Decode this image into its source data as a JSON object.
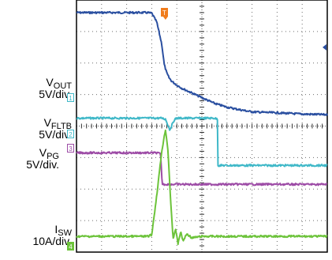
{
  "chart_data": {
    "type": "line",
    "title": "",
    "xlabel": "",
    "ylabel": "",
    "grid": true,
    "divisions": {
      "x": 10,
      "y": 8
    },
    "x_range": [
      0,
      10
    ],
    "y_range": [
      -4,
      4
    ],
    "trigger_marker": {
      "label": "T",
      "x": 3.55,
      "color": "#f07c1c"
    },
    "trigger_level_marker": {
      "y": 2.5,
      "color": "#2a4fa0"
    },
    "series": [
      {
        "key": "vout",
        "label_main": "V",
        "label_sub": "OUT",
        "label_scale": "5V/div.",
        "channel": "1",
        "color": "#2a4fa0",
        "marker_color": "#3fb8c8",
        "ground_div": 0.15,
        "x": [
          0,
          1,
          2,
          2.8,
          3.0,
          3.2,
          3.4,
          3.5,
          3.6,
          3.7,
          3.8,
          4.0,
          4.2,
          4.6,
          5.0,
          5.5,
          6.0,
          6.5,
          7.0,
          8.0,
          9.0,
          10.0
        ],
        "y": [
          3.6,
          3.6,
          3.6,
          3.6,
          3.58,
          3.3,
          2.6,
          1.95,
          1.68,
          1.52,
          1.42,
          1.3,
          1.2,
          1.05,
          0.9,
          0.72,
          0.6,
          0.52,
          0.45,
          0.42,
          0.38,
          0.36
        ]
      },
      {
        "key": "vfltb",
        "label_main": "V",
        "label_sub": "FLTB",
        "label_scale": "5V/div.",
        "channel": "2",
        "color": "#3fb8c8",
        "marker_color": "#3fb8c8",
        "ground_div": -1.25,
        "x": [
          0,
          1,
          2,
          3.4,
          3.55,
          3.65,
          3.72,
          3.8,
          3.9,
          4.0,
          4.5,
          5.0,
          5.5,
          5.62,
          5.64,
          5.7,
          6,
          7,
          8,
          9,
          10
        ],
        "y": [
          0.25,
          0.25,
          0.25,
          0.25,
          0.22,
          0.02,
          -0.12,
          0.02,
          0.2,
          0.25,
          0.25,
          0.25,
          0.25,
          0.22,
          -1.25,
          -1.25,
          -1.25,
          -1.25,
          -1.25,
          -1.25,
          -1.25
        ]
      },
      {
        "key": "vpg",
        "label_main": "V",
        "label_sub": "PG",
        "label_scale": "5V/div.",
        "channel": "3",
        "color": "#9d4ca6",
        "marker_color": "#9d4ca6",
        "ground_div": -1.85,
        "x": [
          0,
          1,
          2,
          3.2,
          3.35,
          3.42,
          3.5,
          4,
          5,
          6,
          7,
          8,
          9,
          10
        ],
        "y": [
          -0.85,
          -0.85,
          -0.85,
          -0.85,
          -0.88,
          -1.85,
          -1.85,
          -1.85,
          -1.85,
          -1.85,
          -1.85,
          -1.85,
          -1.85,
          -1.85
        ]
      },
      {
        "key": "isw",
        "label_main": "I",
        "label_sub": "SW",
        "label_scale": "10A/div.",
        "channel": "4",
        "color": "#6cc33a",
        "marker_color": "#6cc33a",
        "ground_div": -3.5,
        "x": [
          0,
          1,
          2,
          2.85,
          3.0,
          3.2,
          3.4,
          3.55,
          3.65,
          3.75,
          3.85,
          3.95,
          4.05,
          4.15,
          4.25,
          4.4,
          4.6,
          5,
          6,
          7,
          8,
          9,
          10
        ],
        "y": [
          -3.5,
          -3.5,
          -3.5,
          -3.5,
          -3.45,
          -2.2,
          -0.8,
          -0.1,
          -0.8,
          -2.3,
          -3.6,
          -3.25,
          -3.75,
          -3.35,
          -3.65,
          -3.42,
          -3.55,
          -3.5,
          -3.5,
          -3.5,
          -3.5,
          -3.5,
          -3.5
        ]
      }
    ]
  }
}
